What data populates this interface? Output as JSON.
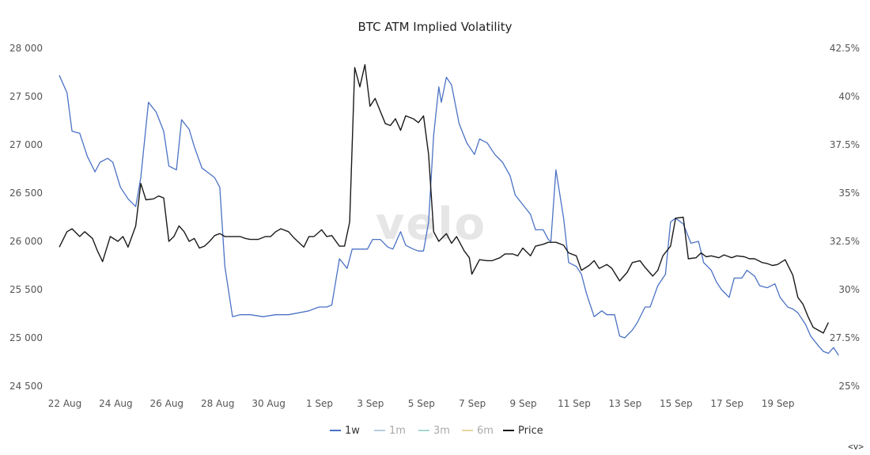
{
  "chart_data": {
    "type": "line",
    "title": "BTC ATM Implied Volatility",
    "watermark": "velo",
    "corner_icon": "<v>",
    "x_labels": [
      "22 Aug",
      "24 Aug",
      "26 Aug",
      "28 Aug",
      "30 Aug",
      "1 Sep",
      "3 Sep",
      "5 Sep",
      "7 Sep",
      "9 Sep",
      "11 Sep",
      "13 Sep",
      "15 Sep",
      "17 Sep",
      "19 Sep"
    ],
    "y_left": {
      "ticks": [
        "28 000",
        "27 500",
        "27 000",
        "26 500",
        "26 000",
        "25 500",
        "25 000",
        "24 500"
      ],
      "range": [
        24500,
        28000
      ]
    },
    "y_right": {
      "ticks": [
        "42.5%",
        "40%",
        "37.5%",
        "35%",
        "32.5%",
        "30%",
        "27.5%",
        "25%"
      ],
      "range": [
        25,
        42.5
      ]
    },
    "x_range_days": [
      0,
      30.6
    ],
    "legend": [
      {
        "name": "1w",
        "color": "#4b72c4"
      },
      {
        "name": "1m",
        "color": "#b7cde0"
      },
      {
        "name": "3m",
        "color": "#a9d7d3"
      },
      {
        "name": "6m",
        "color": "#e6d6a2"
      },
      {
        "name": "Price",
        "color": "#1a1a1a"
      }
    ],
    "series": [
      {
        "name": "1w",
        "axis": "right",
        "color": "#4b72c4",
        "points": [
          [
            0.0,
            41.1
          ],
          [
            0.3,
            40.2
          ],
          [
            0.5,
            38.2
          ],
          [
            0.8,
            38.1
          ],
          [
            1.1,
            36.9
          ],
          [
            1.4,
            36.1
          ],
          [
            1.6,
            36.6
          ],
          [
            1.9,
            36.8
          ],
          [
            2.1,
            36.6
          ],
          [
            2.4,
            35.3
          ],
          [
            2.7,
            34.7
          ],
          [
            3.0,
            34.3
          ],
          [
            3.2,
            35.8
          ],
          [
            3.5,
            39.7
          ],
          [
            3.8,
            39.2
          ],
          [
            4.1,
            38.2
          ],
          [
            4.3,
            36.4
          ],
          [
            4.6,
            36.2
          ],
          [
            4.8,
            38.8
          ],
          [
            5.1,
            38.3
          ],
          [
            5.3,
            37.4
          ],
          [
            5.6,
            36.3
          ],
          [
            5.9,
            36.0
          ],
          [
            6.1,
            35.8
          ],
          [
            6.3,
            35.3
          ],
          [
            6.5,
            31.2
          ],
          [
            6.8,
            28.6
          ],
          [
            7.1,
            28.7
          ],
          [
            7.5,
            28.7
          ],
          [
            8.0,
            28.6
          ],
          [
            8.5,
            28.7
          ],
          [
            9.0,
            28.7
          ],
          [
            9.4,
            28.8
          ],
          [
            9.8,
            28.9
          ],
          [
            10.0,
            29.0
          ],
          [
            10.2,
            29.1
          ],
          [
            10.5,
            29.1
          ],
          [
            10.7,
            29.2
          ],
          [
            11.0,
            31.6
          ],
          [
            11.3,
            31.1
          ],
          [
            11.5,
            32.1
          ],
          [
            11.8,
            32.1
          ],
          [
            12.1,
            32.1
          ],
          [
            12.3,
            32.6
          ],
          [
            12.6,
            32.6
          ],
          [
            12.9,
            32.2
          ],
          [
            13.1,
            32.1
          ],
          [
            13.4,
            33.0
          ],
          [
            13.6,
            32.3
          ],
          [
            13.9,
            32.1
          ],
          [
            14.1,
            32.0
          ],
          [
            14.3,
            32.0
          ],
          [
            14.5,
            33.5
          ],
          [
            14.7,
            38.0
          ],
          [
            14.9,
            40.5
          ],
          [
            15.0,
            39.7
          ],
          [
            15.2,
            41.0
          ],
          [
            15.4,
            40.6
          ],
          [
            15.7,
            38.6
          ],
          [
            16.0,
            37.6
          ],
          [
            16.3,
            37.0
          ],
          [
            16.5,
            37.8
          ],
          [
            16.8,
            37.6
          ],
          [
            17.1,
            37.0
          ],
          [
            17.4,
            36.6
          ],
          [
            17.7,
            35.9
          ],
          [
            17.9,
            34.9
          ],
          [
            18.2,
            34.4
          ],
          [
            18.5,
            33.9
          ],
          [
            18.7,
            33.1
          ],
          [
            19.0,
            33.1
          ],
          [
            19.2,
            32.6
          ],
          [
            19.3,
            32.5
          ],
          [
            19.5,
            36.2
          ],
          [
            19.8,
            33.7
          ],
          [
            20.0,
            31.4
          ],
          [
            20.3,
            31.2
          ],
          [
            20.5,
            30.8
          ],
          [
            20.7,
            29.8
          ],
          [
            21.0,
            28.6
          ],
          [
            21.3,
            28.9
          ],
          [
            21.5,
            28.7
          ],
          [
            21.8,
            28.7
          ],
          [
            22.0,
            27.6
          ],
          [
            22.2,
            27.5
          ],
          [
            22.5,
            27.9
          ],
          [
            22.7,
            28.3
          ],
          [
            23.0,
            29.1
          ],
          [
            23.2,
            29.1
          ],
          [
            23.5,
            30.2
          ],
          [
            23.8,
            30.8
          ],
          [
            24.0,
            33.5
          ],
          [
            24.2,
            33.7
          ],
          [
            24.5,
            33.4
          ],
          [
            24.8,
            32.4
          ],
          [
            25.1,
            32.5
          ],
          [
            25.3,
            31.4
          ],
          [
            25.6,
            31.0
          ],
          [
            25.8,
            30.4
          ],
          [
            26.0,
            30.0
          ],
          [
            26.3,
            29.6
          ],
          [
            26.5,
            30.6
          ],
          [
            26.8,
            30.6
          ],
          [
            27.0,
            31.0
          ],
          [
            27.3,
            30.7
          ],
          [
            27.5,
            30.2
          ],
          [
            27.8,
            30.1
          ],
          [
            28.1,
            30.3
          ],
          [
            28.3,
            29.6
          ],
          [
            28.6,
            29.1
          ],
          [
            28.8,
            29.0
          ],
          [
            29.0,
            28.8
          ],
          [
            29.3,
            28.2
          ],
          [
            29.5,
            27.6
          ],
          [
            29.8,
            27.1
          ],
          [
            30.0,
            26.8
          ],
          [
            30.2,
            26.7
          ],
          [
            30.4,
            27.0
          ],
          [
            30.6,
            26.6
          ]
        ]
      },
      {
        "name": "Price",
        "axis": "left",
        "color": "#1a1a1a",
        "points": [
          [
            0.0,
            25940
          ],
          [
            0.3,
            26100
          ],
          [
            0.5,
            26130
          ],
          [
            0.8,
            26050
          ],
          [
            1.0,
            26100
          ],
          [
            1.3,
            26030
          ],
          [
            1.5,
            25900
          ],
          [
            1.7,
            25790
          ],
          [
            2.0,
            26050
          ],
          [
            2.3,
            26000
          ],
          [
            2.5,
            26050
          ],
          [
            2.7,
            25940
          ],
          [
            3.0,
            26160
          ],
          [
            3.2,
            26600
          ],
          [
            3.4,
            26430
          ],
          [
            3.7,
            26440
          ],
          [
            3.9,
            26470
          ],
          [
            4.1,
            26450
          ],
          [
            4.3,
            26000
          ],
          [
            4.5,
            26050
          ],
          [
            4.7,
            26160
          ],
          [
            4.9,
            26100
          ],
          [
            5.1,
            26000
          ],
          [
            5.3,
            26030
          ],
          [
            5.5,
            25930
          ],
          [
            5.7,
            25950
          ],
          [
            5.9,
            26000
          ],
          [
            6.1,
            26060
          ],
          [
            6.3,
            26080
          ],
          [
            6.5,
            26050
          ],
          [
            6.8,
            26050
          ],
          [
            7.1,
            26050
          ],
          [
            7.3,
            26030
          ],
          [
            7.5,
            26020
          ],
          [
            7.8,
            26020
          ],
          [
            8.1,
            26050
          ],
          [
            8.3,
            26050
          ],
          [
            8.5,
            26100
          ],
          [
            8.7,
            26130
          ],
          [
            9.0,
            26100
          ],
          [
            9.2,
            26040
          ],
          [
            9.4,
            25990
          ],
          [
            9.6,
            25940
          ],
          [
            9.8,
            26050
          ],
          [
            10.0,
            26050
          ],
          [
            10.3,
            26120
          ],
          [
            10.5,
            26050
          ],
          [
            10.7,
            26060
          ],
          [
            11.0,
            25950
          ],
          [
            11.2,
            25950
          ],
          [
            11.4,
            26200
          ],
          [
            11.6,
            27800
          ],
          [
            11.8,
            27600
          ],
          [
            12.0,
            27830
          ],
          [
            12.2,
            27400
          ],
          [
            12.4,
            27480
          ],
          [
            12.6,
            27350
          ],
          [
            12.8,
            27220
          ],
          [
            13.0,
            27200
          ],
          [
            13.2,
            27270
          ],
          [
            13.4,
            27150
          ],
          [
            13.6,
            27300
          ],
          [
            13.9,
            27270
          ],
          [
            14.1,
            27230
          ],
          [
            14.3,
            27300
          ],
          [
            14.5,
            26900
          ],
          [
            14.7,
            26100
          ],
          [
            14.9,
            26000
          ],
          [
            15.2,
            26080
          ],
          [
            15.4,
            25980
          ],
          [
            15.6,
            26050
          ],
          [
            15.9,
            25900
          ],
          [
            16.1,
            25830
          ],
          [
            16.2,
            25660
          ],
          [
            16.5,
            25810
          ],
          [
            16.8,
            25800
          ],
          [
            17.0,
            25800
          ],
          [
            17.3,
            25830
          ],
          [
            17.5,
            25870
          ],
          [
            17.8,
            25870
          ],
          [
            18.0,
            25850
          ],
          [
            18.2,
            25930
          ],
          [
            18.5,
            25850
          ],
          [
            18.7,
            25950
          ],
          [
            19.0,
            25970
          ],
          [
            19.2,
            25990
          ],
          [
            19.5,
            25990
          ],
          [
            19.8,
            25960
          ],
          [
            20.0,
            25880
          ],
          [
            20.3,
            25850
          ],
          [
            20.5,
            25700
          ],
          [
            20.8,
            25750
          ],
          [
            21.0,
            25800
          ],
          [
            21.2,
            25720
          ],
          [
            21.5,
            25760
          ],
          [
            21.7,
            25720
          ],
          [
            22.0,
            25590
          ],
          [
            22.3,
            25680
          ],
          [
            22.5,
            25780
          ],
          [
            22.8,
            25800
          ],
          [
            23.0,
            25730
          ],
          [
            23.3,
            25640
          ],
          [
            23.5,
            25700
          ],
          [
            23.7,
            25850
          ],
          [
            24.0,
            25950
          ],
          [
            24.2,
            26240
          ],
          [
            24.5,
            26250
          ],
          [
            24.7,
            25820
          ],
          [
            25.0,
            25830
          ],
          [
            25.2,
            25880
          ],
          [
            25.4,
            25840
          ],
          [
            25.6,
            25850
          ],
          [
            25.9,
            25830
          ],
          [
            26.1,
            25860
          ],
          [
            26.4,
            25830
          ],
          [
            26.6,
            25850
          ],
          [
            26.9,
            25840
          ],
          [
            27.1,
            25820
          ],
          [
            27.3,
            25820
          ],
          [
            27.6,
            25780
          ],
          [
            27.8,
            25770
          ],
          [
            28.0,
            25750
          ],
          [
            28.2,
            25760
          ],
          [
            28.5,
            25810
          ],
          [
            28.8,
            25650
          ],
          [
            29.0,
            25420
          ],
          [
            29.2,
            25350
          ],
          [
            29.4,
            25220
          ],
          [
            29.6,
            25110
          ],
          [
            30.0,
            25050
          ],
          [
            30.2,
            25160
          ]
        ]
      }
    ]
  }
}
